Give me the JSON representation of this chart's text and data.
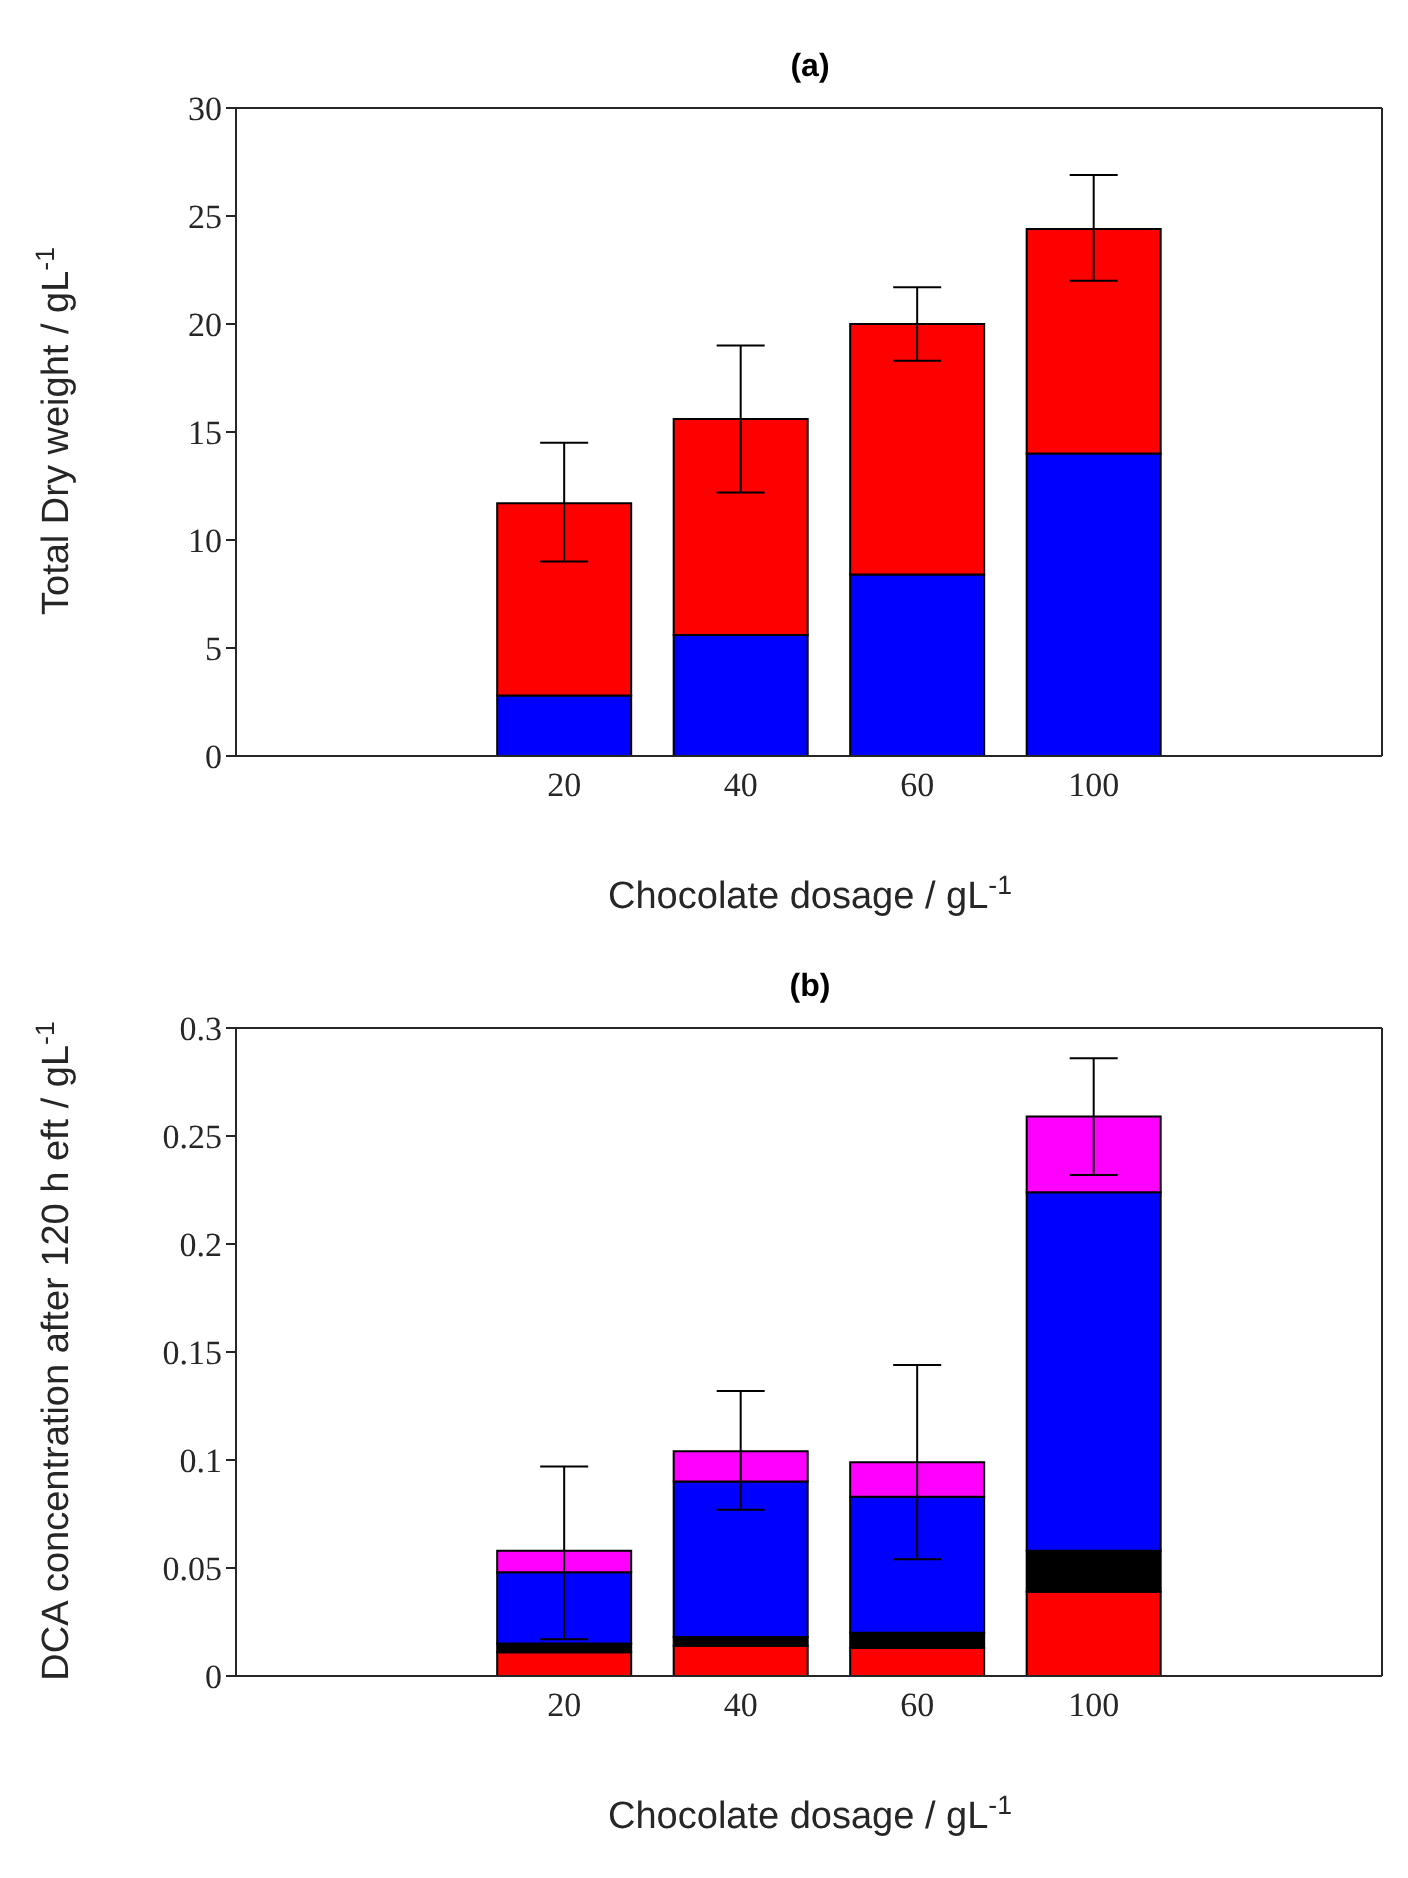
{
  "chart_data": [
    {
      "type": "bar",
      "title": "(a)",
      "xlabel": "Chocolate dosage / gL$^{-1}$",
      "ylabel": "Total Dry weight / gL$^{-1}$",
      "categories": [
        "20",
        "40",
        "60",
        "100"
      ],
      "stacked": true,
      "series": [
        {
          "color": "#0000ff",
          "values": [
            2.8,
            5.6,
            8.4,
            14.0
          ]
        },
        {
          "color": "#ff0000",
          "values": [
            8.9,
            10.0,
            11.6,
            10.4
          ],
          "errors": [
            [
              9.0,
              14.5
            ],
            [
              12.2,
              19.0
            ],
            [
              18.3,
              21.7
            ],
            [
              22.0,
              26.9
            ]
          ]
        }
      ],
      "ylim": [
        0,
        30
      ],
      "yticks": [
        0,
        5,
        10,
        15,
        20,
        25,
        30
      ],
      "grid": false,
      "legend": false
    },
    {
      "type": "bar",
      "title": "(b)",
      "xlabel": "Chocolate dosage / gL$^{-1}$",
      "ylabel": "DCA concentration after 120 h eft / gL$^{-1}$",
      "categories": [
        "20",
        "40",
        "60",
        "100"
      ],
      "stacked": true,
      "series": [
        {
          "color": "#ff0000",
          "values": [
            0.011,
            0.014,
            0.013,
            0.039
          ]
        },
        {
          "color": "#000000",
          "values": [
            0.004,
            0.004,
            0.007,
            0.019
          ]
        },
        {
          "color": "#0000ff",
          "values": [
            0.033,
            0.072,
            0.063,
            0.166
          ]
        },
        {
          "color": "#ff00ff",
          "values": [
            0.01,
            0.014,
            0.016,
            0.035
          ],
          "errors": [
            [
              0.017,
              0.097
            ],
            [
              0.077,
              0.132
            ],
            [
              0.054,
              0.144
            ],
            [
              0.232,
              0.286
            ]
          ]
        }
      ],
      "ylim": [
        0,
        0.3
      ],
      "yticks": [
        0,
        0.05,
        0.1,
        0.15,
        0.2,
        0.25,
        0.3
      ],
      "grid": false,
      "legend": false
    }
  ]
}
